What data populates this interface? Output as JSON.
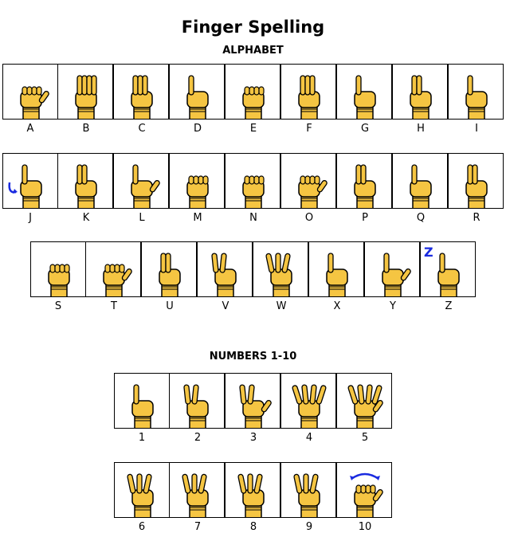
{
  "title": "Finger Spelling",
  "alphabet_heading": "ALPHABET",
  "numbers_heading": "NUMBERS 1-10",
  "alphabet_row1": [
    {
      "label": "A",
      "icon": "fist-thumb-side-icon"
    },
    {
      "label": "B",
      "icon": "flat-hand-icon"
    },
    {
      "label": "C",
      "icon": "c-curve-hand-icon"
    },
    {
      "label": "D",
      "icon": "index-up-icon"
    },
    {
      "label": "E",
      "icon": "bent-fingers-icon"
    },
    {
      "label": "F",
      "icon": "three-fingers-up-icon"
    },
    {
      "label": "G",
      "icon": "point-sideways-icon"
    },
    {
      "label": "H",
      "icon": "two-fingers-sideways-icon"
    },
    {
      "label": "I",
      "icon": "pinky-up-icon"
    }
  ],
  "alphabet_row2": [
    {
      "label": "J",
      "icon": "pinky-j-motion-icon"
    },
    {
      "label": "K",
      "icon": "k-hand-icon"
    },
    {
      "label": "L",
      "icon": "l-hand-icon"
    },
    {
      "label": "M",
      "icon": "m-fist-icon"
    },
    {
      "label": "N",
      "icon": "n-fist-icon"
    },
    {
      "label": "O",
      "icon": "o-hand-icon"
    },
    {
      "label": "P",
      "icon": "p-hand-icon"
    },
    {
      "label": "Q",
      "icon": "q-hand-icon"
    },
    {
      "label": "R",
      "icon": "crossed-fingers-icon"
    }
  ],
  "alphabet_row3": [
    {
      "label": "S",
      "icon": "s-fist-icon"
    },
    {
      "label": "T",
      "icon": "t-fist-icon"
    },
    {
      "label": "U",
      "icon": "two-fingers-together-icon"
    },
    {
      "label": "V",
      "icon": "v-hand-icon"
    },
    {
      "label": "W",
      "icon": "three-fingers-spread-icon"
    },
    {
      "label": "X",
      "icon": "hooked-index-icon"
    },
    {
      "label": "Y",
      "icon": "y-hand-icon"
    },
    {
      "label": "Z",
      "icon": "index-z-motion-icon"
    }
  ],
  "numbers_row1": [
    {
      "label": "1",
      "icon": "one-hand-icon"
    },
    {
      "label": "2",
      "icon": "two-hand-icon"
    },
    {
      "label": "3",
      "icon": "three-hand-icon"
    },
    {
      "label": "4",
      "icon": "four-hand-icon"
    },
    {
      "label": "5",
      "icon": "five-hand-icon"
    }
  ],
  "numbers_row2": [
    {
      "label": "6",
      "icon": "six-hand-icon"
    },
    {
      "label": "7",
      "icon": "seven-hand-icon"
    },
    {
      "label": "8",
      "icon": "eight-hand-icon"
    },
    {
      "label": "9",
      "icon": "nine-hand-icon"
    },
    {
      "label": "10",
      "icon": "ten-shake-icon"
    }
  ],
  "colors": {
    "skin": "#f5c542",
    "outline": "#000000",
    "motion": "#1a2be0"
  }
}
